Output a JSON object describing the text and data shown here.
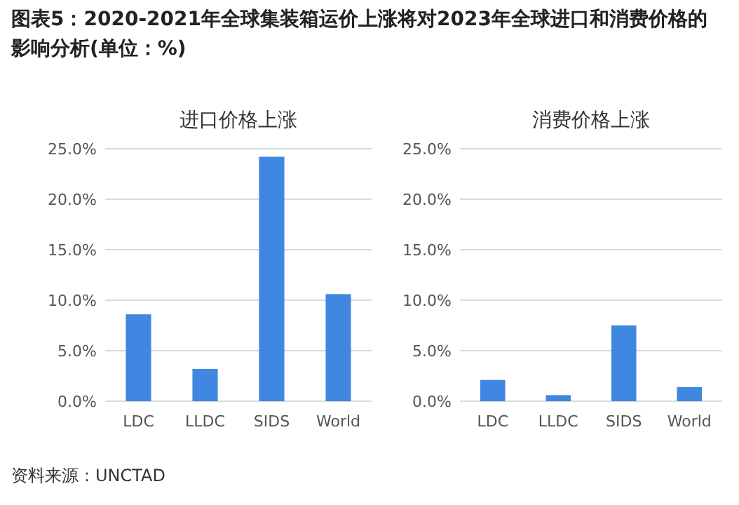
{
  "chart_data": [
    {
      "type": "other",
      "title": "图表5：2020-2021年全球集装箱运价上涨将对2023年全球进口和消费价格的影响分析(单位：%)",
      "annotations": [
        "资料来源：UNCTAD"
      ]
    },
    {
      "type": "bar",
      "title": "进口价格上涨",
      "categories": [
        "LDC",
        "LLDC",
        "SIDS",
        "World"
      ],
      "values": [
        8.6,
        3.2,
        24.2,
        10.6
      ],
      "color": "#3f87e0",
      "ylim": [
        0,
        25
      ],
      "yticks": [
        {
          "value": 0,
          "label": "0.0%"
        },
        {
          "value": 5,
          "label": "5.0%"
        },
        {
          "value": 10,
          "label": "10.0%"
        },
        {
          "value": 15,
          "label": "15.0%"
        },
        {
          "value": 20,
          "label": "20.0%"
        },
        {
          "value": 25,
          "label": "25.0%"
        }
      ],
      "grid": "y"
    },
    {
      "type": "bar",
      "title": "消费价格上涨",
      "categories": [
        "LDC",
        "LLDC",
        "SIDS",
        "World"
      ],
      "values": [
        2.1,
        0.6,
        7.5,
        1.4
      ],
      "color": "#3f87e0",
      "ylim": [
        0,
        25
      ],
      "yticks": [
        {
          "value": 0,
          "label": "0.0%"
        },
        {
          "value": 5,
          "label": "5.0%"
        },
        {
          "value": 10,
          "label": "10.0%"
        },
        {
          "value": 15,
          "label": "15.0%"
        },
        {
          "value": 20,
          "label": "20.0%"
        },
        {
          "value": 25,
          "label": "25.0%"
        }
      ],
      "grid": "y"
    }
  ]
}
